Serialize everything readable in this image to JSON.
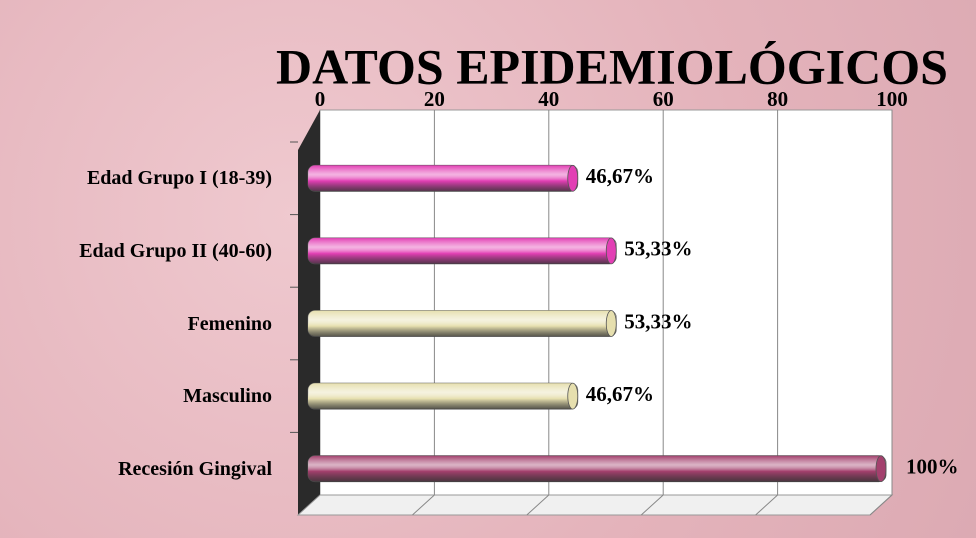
{
  "chart_data": {
    "type": "barh",
    "title": "DATOS EPIDEMIOLÓGICOS",
    "categories": [
      "Edad Grupo I (18-39)",
      "Edad Grupo II (40-60)",
      "Femenino",
      "Masculino",
      "Recesión Gingival"
    ],
    "values": [
      46.67,
      53.33,
      53.33,
      46.67,
      100
    ],
    "value_labels": [
      "46,67%",
      "53,33%",
      "53,33%",
      "46,67%",
      "100%"
    ],
    "colors": [
      "#e23fb4",
      "#e23fb4",
      "#e6dfae",
      "#e6dfae",
      "#a3406d"
    ],
    "xlim": [
      0,
      100
    ],
    "xticks": [
      0,
      20,
      40,
      60,
      80,
      100
    ],
    "grid": true
  }
}
